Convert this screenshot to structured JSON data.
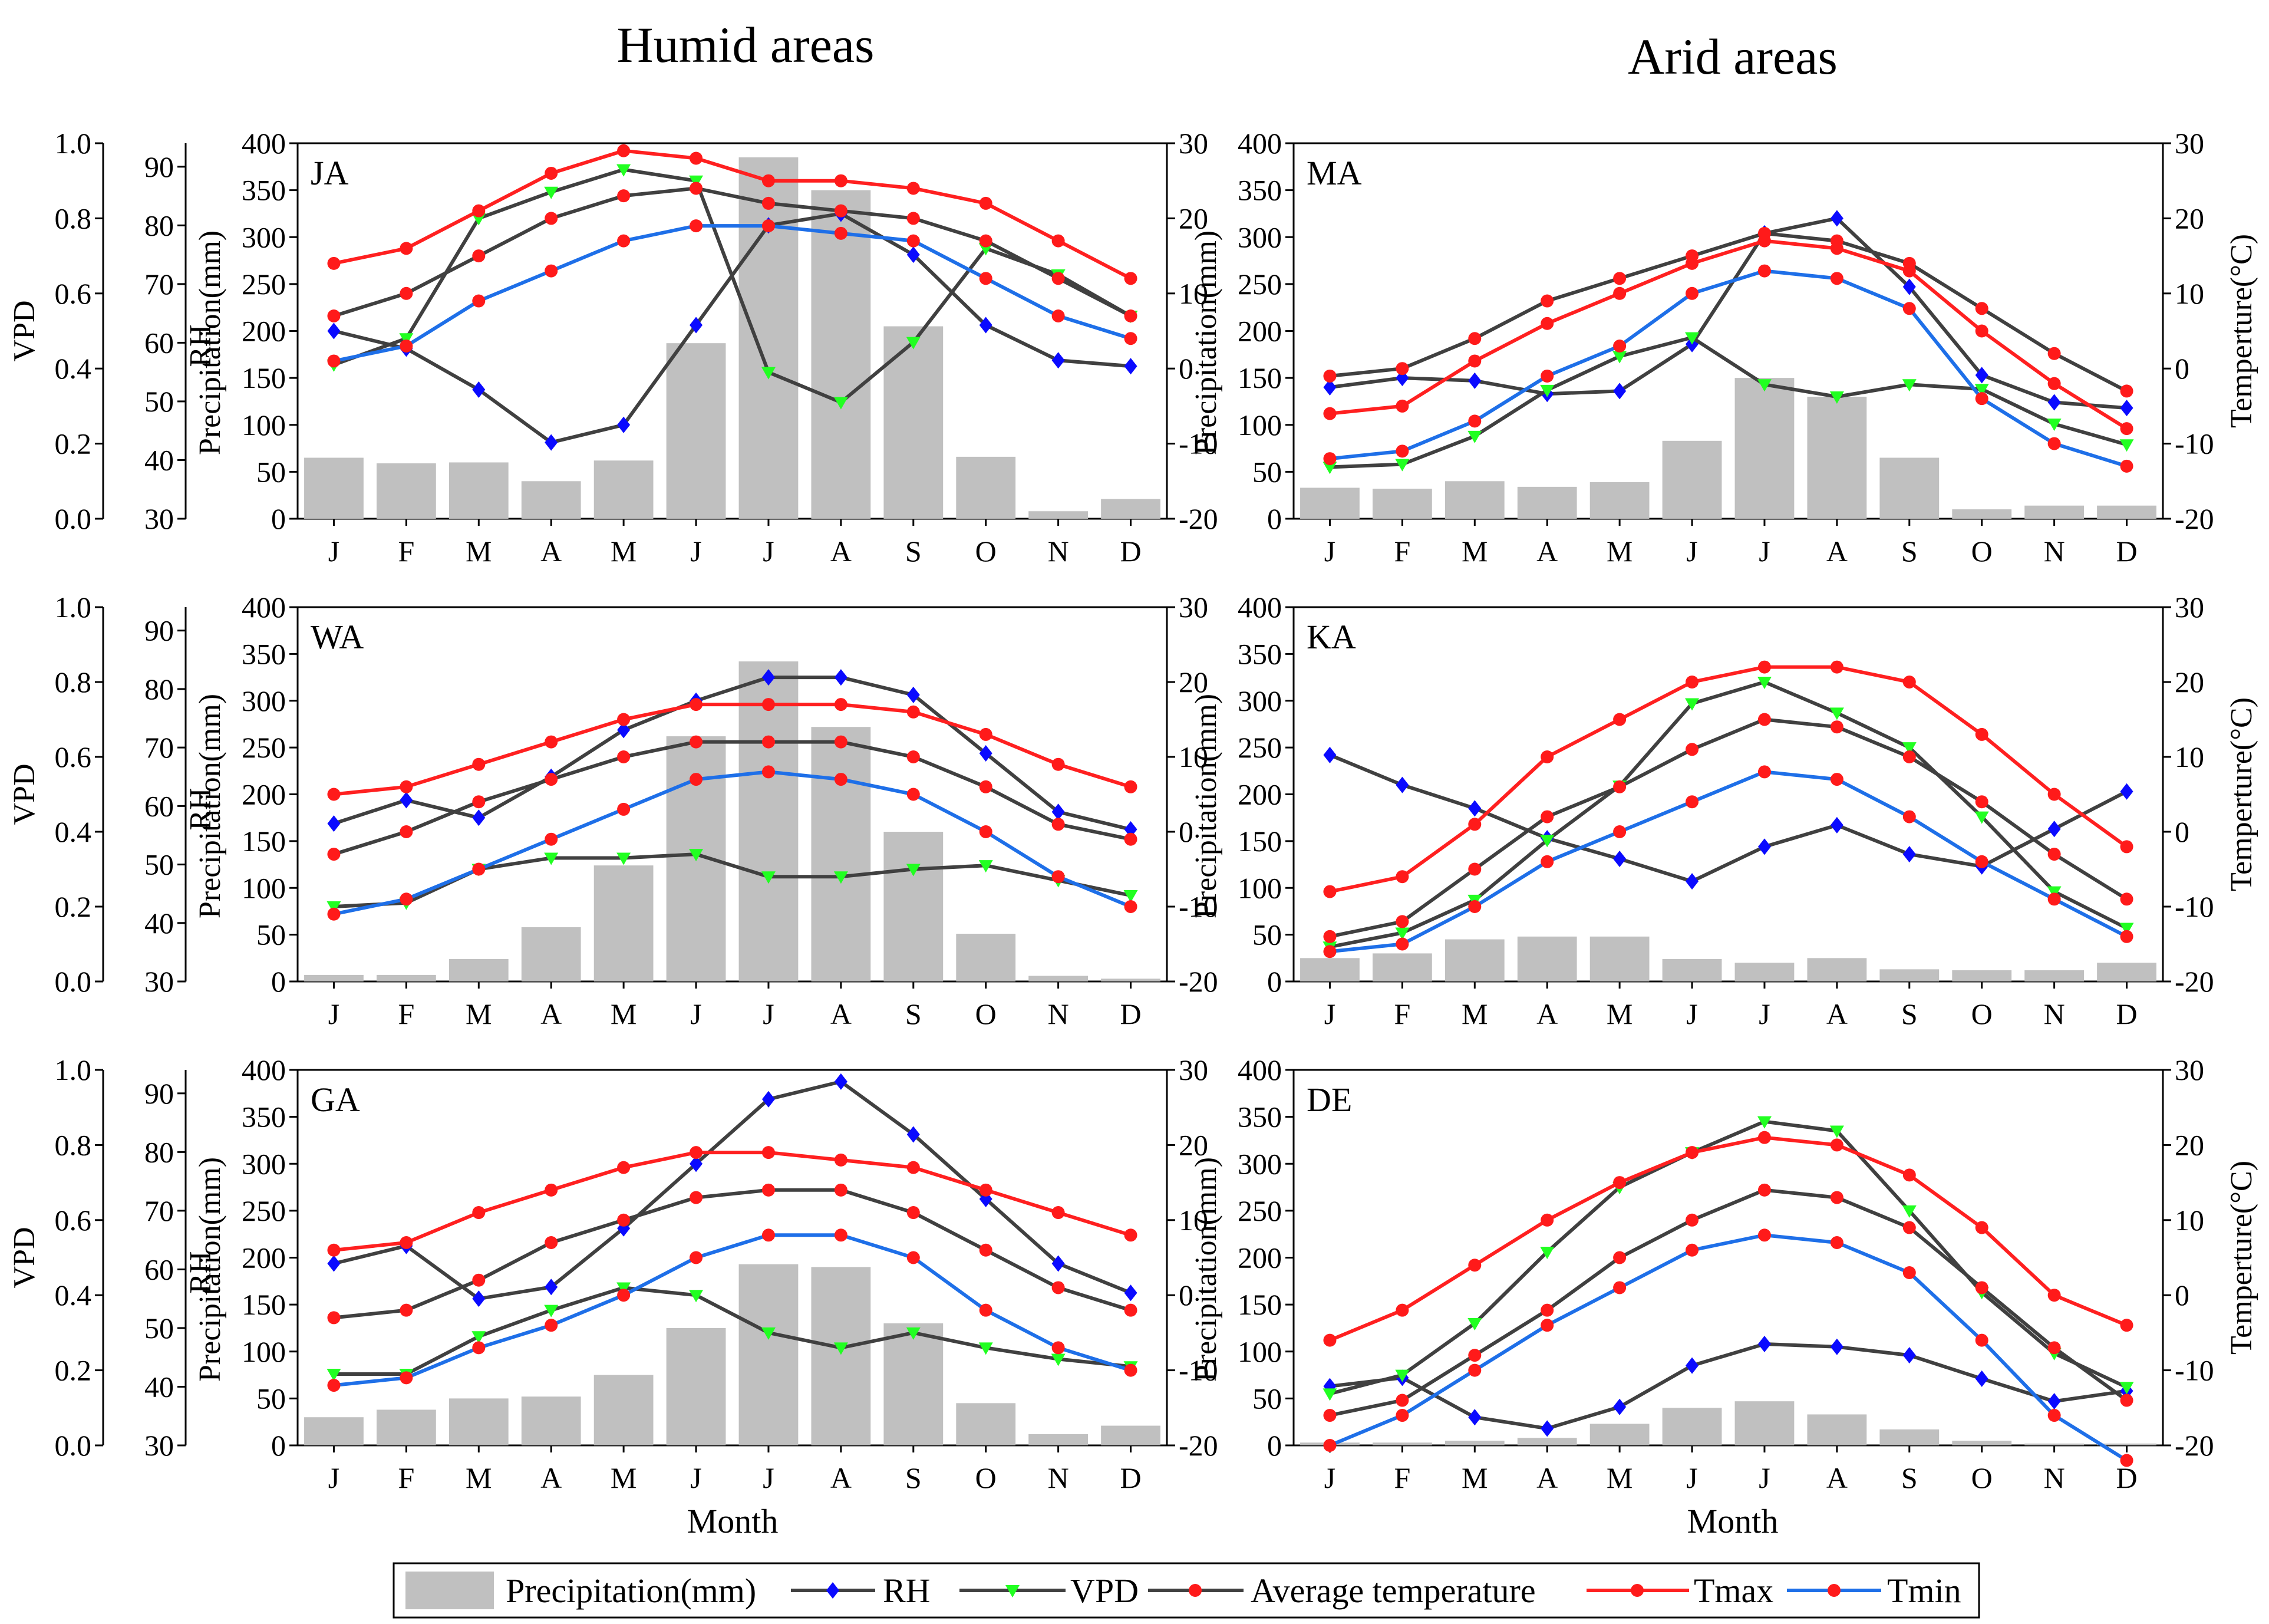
{
  "figure": {
    "column_titles": [
      "Humid areas",
      "Arid areas"
    ],
    "x_axis_title": "Month",
    "legend": [
      {
        "key": "precip",
        "label": "Precipitation(mm)"
      },
      {
        "key": "rh",
        "label": "RH"
      },
      {
        "key": "vpd",
        "label": "VPD"
      },
      {
        "key": "tavg",
        "label": "Average temperature"
      },
      {
        "key": "tmax",
        "label": "Tmax"
      },
      {
        "key": "tmin",
        "label": "Tmin"
      }
    ],
    "axes": {
      "vpd_label": "VPD",
      "rh_label": "RH",
      "precip_label": "Precipitation(mm)",
      "temp_label": "Temperture(°C)",
      "vpd_ticks": [
        "1.0",
        "0.8",
        "0.6",
        "0.4",
        "0.2",
        "0.0"
      ],
      "rh_ticks": [
        "90",
        "80",
        "70",
        "60",
        "50",
        "40",
        "30"
      ],
      "precip_ticks": [
        "400",
        "350",
        "300",
        "250",
        "200",
        "150",
        "100",
        "50",
        "0"
      ],
      "temp_ticks": [
        "30",
        "20",
        "10",
        "0",
        "-10",
        "-20"
      ]
    },
    "colors": {
      "precip": "#c0c0c0",
      "rh": "#0a0aff",
      "vpd": "#21ff21",
      "tavg": "#ff1a1a",
      "tmax": "#ff1a1a",
      "tmin": "#ff1a1a",
      "line_dark": "#404040",
      "line_red": "#ff2020",
      "line_blue": "#1e6fe8"
    }
  },
  "chart_data": [
    {
      "type": "combo",
      "panel": "JA",
      "column": "Humid areas",
      "categories": [
        "J",
        "F",
        "M",
        "A",
        "M",
        "J",
        "J",
        "A",
        "S",
        "O",
        "N",
        "D"
      ],
      "series": [
        {
          "name": "Precipitation(mm)",
          "axis": "precip",
          "values": [
            65,
            59,
            60,
            40,
            62,
            187,
            385,
            350,
            205,
            66,
            8,
            21
          ]
        },
        {
          "name": "RH",
          "axis": "rh",
          "values": [
            62,
            59,
            52,
            43,
            46,
            63,
            80,
            82,
            75,
            63,
            57,
            56
          ]
        },
        {
          "name": "VPD",
          "axis": "vpd",
          "values": [
            0.41,
            0.48,
            0.8,
            0.87,
            0.93,
            0.9,
            0.39,
            0.31,
            0.47,
            0.72,
            0.65,
            0.54
          ]
        },
        {
          "name": "Average temperature",
          "axis": "temp",
          "values": [
            7,
            10,
            15,
            20,
            23,
            24,
            22,
            21,
            20,
            17,
            12,
            7
          ]
        },
        {
          "name": "Tmax",
          "axis": "temp",
          "values": [
            14,
            16,
            21,
            26,
            29,
            28,
            25,
            25,
            24,
            22,
            17,
            12
          ]
        },
        {
          "name": "Tmin",
          "axis": "temp",
          "values": [
            1,
            3,
            9,
            13,
            17,
            19,
            19,
            18,
            17,
            12,
            7,
            4
          ]
        }
      ],
      "ylim": {
        "vpd": [
          0,
          1
        ],
        "rh": [
          30,
          94
        ],
        "precip": [
          0,
          400
        ],
        "temp": [
          -20,
          30
        ]
      }
    },
    {
      "type": "combo",
      "panel": "MA",
      "column": "Arid areas",
      "categories": [
        "J",
        "F",
        "M",
        "A",
        "M",
        "J",
        "J",
        "A",
        "S",
        "O",
        "N",
        "D"
      ],
      "series": [
        {
          "name": "Precipitation(mm)",
          "axis": "precip",
          "values": [
            33,
            32,
            40,
            34,
            39,
            83,
            150,
            130,
            65,
            10,
            14,
            14
          ]
        },
        {
          "name": "RH",
          "axis": "rh",
          "values": [
            140,
            150,
            147,
            133,
            136,
            186,
            304,
            320,
            247,
            153,
            124,
            118
          ]
        },
        {
          "name": "VPD",
          "axis": "vpd",
          "values": [
            55,
            58,
            88,
            137,
            173,
            193,
            143,
            130,
            143,
            138,
            101,
            79
          ]
        },
        {
          "name": "Average temperature",
          "axis": "temp",
          "values": [
            -1,
            0,
            4,
            9,
            12,
            15,
            18,
            17,
            14,
            8,
            2,
            -3
          ]
        },
        {
          "name": "Tmax",
          "axis": "temp",
          "values": [
            -6,
            -5,
            1,
            6,
            10,
            14,
            17,
            16,
            13,
            5,
            -2,
            -8
          ]
        },
        {
          "name": "Tmin",
          "axis": "temp",
          "values": [
            -12,
            -11,
            -7,
            -1,
            3,
            10,
            13,
            12,
            8,
            -4,
            -10,
            -13
          ]
        }
      ],
      "ylim": {
        "precip": [
          0,
          400
        ],
        "temp": [
          -20,
          30
        ]
      }
    },
    {
      "type": "combo",
      "panel": "WA",
      "column": "Humid areas",
      "categories": [
        "J",
        "F",
        "M",
        "A",
        "M",
        "J",
        "J",
        "A",
        "S",
        "O",
        "N",
        "D"
      ],
      "series": [
        {
          "name": "Precipitation(mm)",
          "axis": "precip",
          "values": [
            7,
            7,
            24,
            58,
            124,
            262,
            342,
            272,
            160,
            51,
            6,
            3
          ]
        },
        {
          "name": "RH",
          "axis": "rh",
          "values": [
            57,
            61,
            58,
            65,
            73,
            78,
            82,
            82,
            79,
            69,
            59,
            56
          ]
        },
        {
          "name": "VPD",
          "axis": "vpd",
          "values": [
            0.2,
            0.21,
            0.3,
            0.33,
            0.33,
            0.34,
            0.28,
            0.28,
            0.3,
            0.31,
            0.27,
            0.23
          ]
        },
        {
          "name": "Average temperature",
          "axis": "temp",
          "values": [
            -3,
            0,
            4,
            7,
            10,
            12,
            12,
            12,
            10,
            6,
            1,
            -1
          ]
        },
        {
          "name": "Tmax",
          "axis": "temp",
          "values": [
            5,
            6,
            9,
            12,
            15,
            17,
            17,
            17,
            16,
            13,
            9,
            6
          ]
        },
        {
          "name": "Tmin",
          "axis": "temp",
          "values": [
            -11,
            -9,
            -5,
            -1,
            3,
            7,
            8,
            7,
            5,
            0,
            -6,
            -10
          ]
        }
      ],
      "ylim": {
        "vpd": [
          0,
          1
        ],
        "rh": [
          30,
          94
        ],
        "precip": [
          0,
          400
        ],
        "temp": [
          -20,
          30
        ]
      }
    },
    {
      "type": "combo",
      "panel": "KA",
      "column": "Arid areas",
      "categories": [
        "J",
        "F",
        "M",
        "A",
        "M",
        "J",
        "J",
        "A",
        "S",
        "O",
        "N",
        "D"
      ],
      "series": [
        {
          "name": "Precipitation(mm)",
          "axis": "precip",
          "values": [
            25,
            30,
            45,
            48,
            48,
            24,
            20,
            25,
            13,
            12,
            12,
            20
          ]
        },
        {
          "name": "RH",
          "axis": "rh",
          "values": [
            242,
            210,
            185,
            153,
            131,
            107,
            144,
            167,
            136,
            123,
            163,
            203
          ]
        },
        {
          "name": "VPD",
          "axis": "vpd",
          "values": [
            37,
            52,
            87,
            151,
            209,
            297,
            320,
            287,
            250,
            176,
            96,
            57
          ]
        },
        {
          "name": "Average temperature",
          "axis": "temp",
          "values": [
            -14,
            -12,
            -5,
            2,
            6,
            11,
            15,
            14,
            10,
            4,
            -3,
            -9
          ]
        },
        {
          "name": "Tmax",
          "axis": "temp",
          "values": [
            -8,
            -6,
            1,
            10,
            15,
            20,
            22,
            22,
            20,
            13,
            5,
            -2
          ]
        },
        {
          "name": "Tmin",
          "axis": "temp",
          "values": [
            -16,
            -15,
            -10,
            -4,
            0,
            4,
            8,
            7,
            2,
            -4,
            -9,
            -14
          ]
        }
      ],
      "ylim": {
        "precip": [
          0,
          400
        ],
        "temp": [
          -20,
          30
        ]
      }
    },
    {
      "type": "combo",
      "panel": "GA",
      "column": "Humid areas",
      "categories": [
        "J",
        "F",
        "M",
        "A",
        "M",
        "J",
        "J",
        "A",
        "S",
        "O",
        "N",
        "D"
      ],
      "series": [
        {
          "name": "Precipitation(mm)",
          "axis": "precip",
          "values": [
            30,
            38,
            50,
            52,
            75,
            125,
            193,
            190,
            130,
            45,
            12,
            21
          ]
        },
        {
          "name": "RH",
          "axis": "rh",
          "values": [
            61,
            64,
            55,
            57,
            67,
            78,
            89,
            92,
            83,
            72,
            61,
            56
          ]
        },
        {
          "name": "VPD",
          "axis": "vpd",
          "values": [
            0.19,
            0.19,
            0.29,
            0.36,
            0.42,
            0.4,
            0.3,
            0.26,
            0.3,
            0.26,
            0.23,
            0.21
          ]
        },
        {
          "name": "Average temperature",
          "axis": "temp",
          "values": [
            -3,
            -2,
            2,
            7,
            10,
            13,
            14,
            14,
            11,
            6,
            1,
            -2
          ]
        },
        {
          "name": "Tmax",
          "axis": "temp",
          "values": [
            6,
            7,
            11,
            14,
            17,
            19,
            19,
            18,
            17,
            14,
            11,
            8
          ]
        },
        {
          "name": "Tmin",
          "axis": "temp",
          "values": [
            -12,
            -11,
            -7,
            -4,
            0,
            5,
            8,
            8,
            5,
            -2,
            -7,
            -10
          ]
        }
      ],
      "ylim": {
        "vpd": [
          0,
          1
        ],
        "rh": [
          30,
          94
        ],
        "precip": [
          0,
          400
        ],
        "temp": [
          -20,
          30
        ]
      }
    },
    {
      "type": "combo",
      "panel": "DE",
      "column": "Arid areas",
      "categories": [
        "J",
        "F",
        "M",
        "A",
        "M",
        "J",
        "J",
        "A",
        "S",
        "O",
        "N",
        "D"
      ],
      "series": [
        {
          "name": "Precipitation(mm)",
          "axis": "precip",
          "values": [
            3,
            3,
            5,
            8,
            23,
            40,
            47,
            33,
            17,
            5,
            2,
            2
          ]
        },
        {
          "name": "RH",
          "axis": "rh",
          "values": [
            63,
            72,
            30,
            18,
            41,
            85,
            108,
            105,
            96,
            71,
            47,
            58
          ]
        },
        {
          "name": "VPD",
          "axis": "vpd",
          "values": [
            55,
            75,
            130,
            206,
            275,
            312,
            345,
            335,
            250,
            163,
            98,
            62
          ]
        },
        {
          "name": "Average temperature",
          "axis": "temp",
          "values": [
            -16,
            -14,
            -8,
            -2,
            5,
            10,
            14,
            13,
            9,
            1,
            -7,
            -14
          ]
        },
        {
          "name": "Tmax",
          "axis": "temp",
          "values": [
            -6,
            -2,
            4,
            10,
            15,
            19,
            21,
            20,
            16,
            9,
            0,
            -4
          ]
        },
        {
          "name": "Tmin",
          "axis": "temp",
          "values": [
            -20,
            -16,
            -10,
            -4,
            1,
            6,
            8,
            7,
            3,
            -6,
            -16,
            -22
          ]
        }
      ],
      "ylim": {
        "precip": [
          0,
          400
        ],
        "temp": [
          -20,
          30
        ]
      }
    }
  ]
}
